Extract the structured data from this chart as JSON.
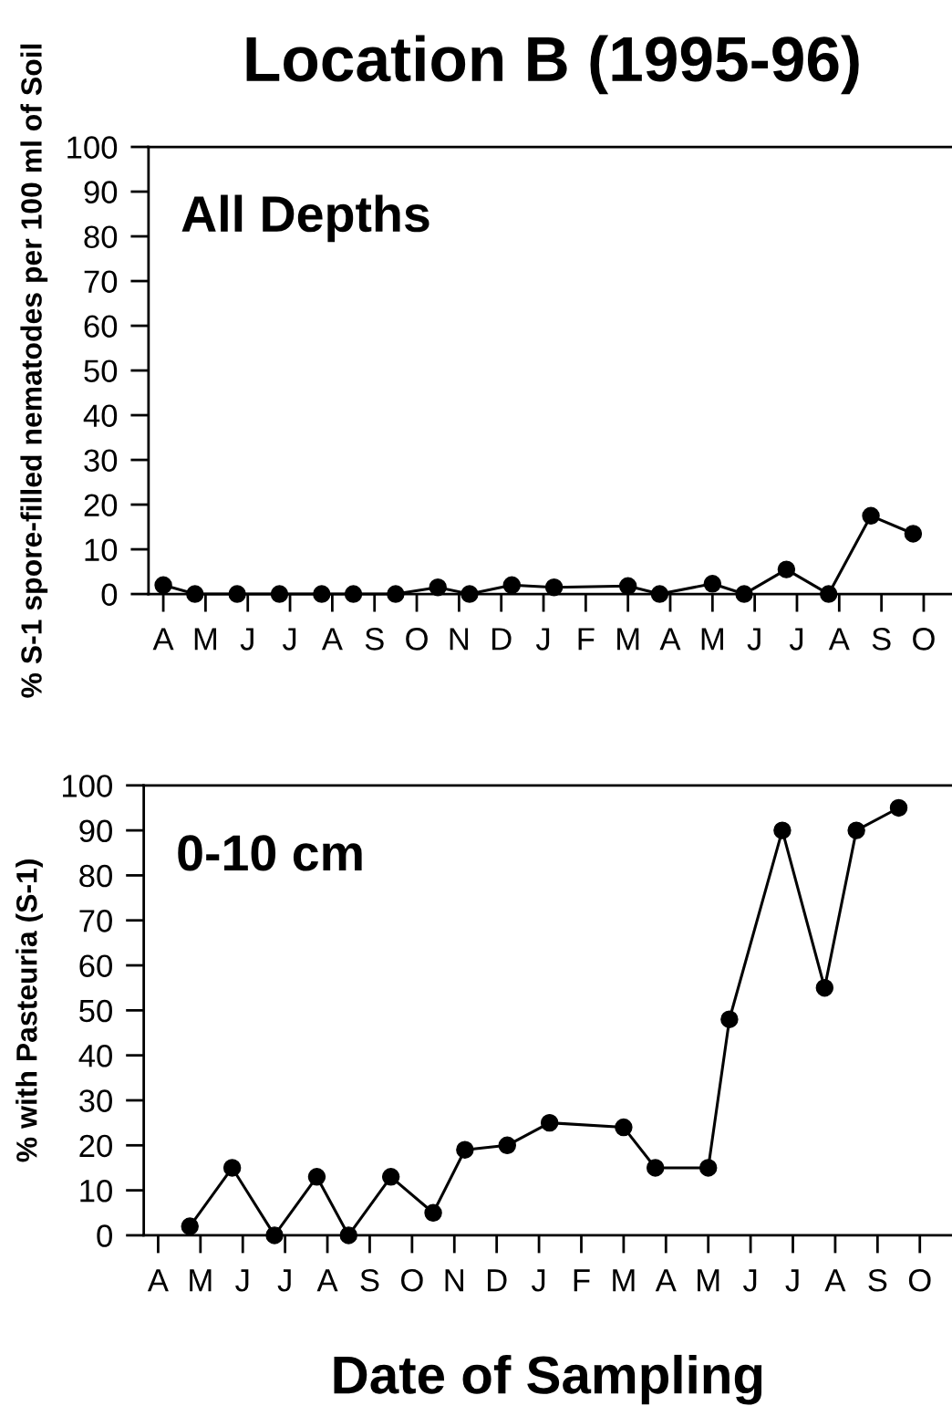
{
  "chart_data": [
    {
      "type": "line",
      "title": "Location B (1995-96)",
      "ylabel": "% S-1 spore-filled nematodes per 100 ml of Soil",
      "annotations": [
        "All Depths"
      ],
      "categories": [
        "A",
        null,
        null,
        null,
        "M",
        null,
        null,
        null,
        "J",
        null,
        null,
        null,
        "J",
        null,
        null,
        null,
        "A",
        null,
        null,
        null,
        "S",
        null,
        null,
        null,
        "O",
        null,
        null,
        null,
        "N",
        null,
        null,
        null,
        "D",
        null,
        null,
        null,
        "J",
        null,
        null,
        null,
        "F",
        null,
        null,
        null,
        "M",
        null,
        null,
        null,
        "A",
        null,
        null,
        null,
        "M",
        null,
        null,
        null,
        "J",
        null,
        null,
        null,
        "J",
        null,
        null,
        null,
        "A",
        null,
        null,
        null,
        "S",
        null,
        null,
        null,
        "O"
      ],
      "series": [
        {
          "color": "#000000",
          "values": [
            2,
            null,
            null,
            0,
            null,
            null,
            null,
            0,
            null,
            null,
            null,
            0,
            null,
            null,
            null,
            0,
            null,
            null,
            0,
            null,
            null,
            null,
            0,
            null,
            null,
            null,
            1.5,
            null,
            null,
            0,
            null,
            null,
            null,
            2,
            null,
            null,
            null,
            1.5,
            null,
            null,
            null,
            null,
            null,
            null,
            1.8,
            null,
            null,
            0,
            null,
            null,
            null,
            null,
            2.3,
            null,
            null,
            0,
            null,
            null,
            null,
            5.5,
            null,
            null,
            null,
            0,
            null,
            null,
            null,
            17.5,
            null,
            null,
            null,
            13.5,
            null
          ]
        }
      ],
      "marker": "circle",
      "line_style": "solid",
      "grid": false,
      "legend": false,
      "ylim": [
        0,
        100
      ],
      "yticks": [
        0,
        10,
        20,
        30,
        40,
        50,
        60,
        70,
        80,
        90,
        100
      ]
    },
    {
      "type": "line",
      "ylabel": "% with Pasteuria (S-1)",
      "xlabel": "Date of Sampling",
      "annotations": [
        "0-10 cm"
      ],
      "categories": [
        "A",
        null,
        null,
        null,
        "M",
        null,
        null,
        null,
        "J",
        null,
        null,
        null,
        "J",
        null,
        null,
        null,
        "A",
        null,
        null,
        null,
        "S",
        null,
        null,
        null,
        "O",
        null,
        null,
        null,
        "N",
        null,
        null,
        null,
        "D",
        null,
        null,
        null,
        "J",
        null,
        null,
        null,
        "F",
        null,
        null,
        null,
        "M",
        null,
        null,
        null,
        "A",
        null,
        null,
        null,
        "M",
        null,
        null,
        null,
        "J",
        null,
        null,
        null,
        "J",
        null,
        null,
        null,
        "A",
        null,
        null,
        null,
        "S",
        null,
        null,
        null,
        "O"
      ],
      "series": [
        {
          "color": "#000000",
          "values": [
            null,
            null,
            null,
            2,
            null,
            null,
            null,
            15,
            null,
            null,
            null,
            0,
            null,
            null,
            null,
            13,
            null,
            null,
            0,
            null,
            null,
            null,
            13,
            null,
            null,
            null,
            5,
            null,
            null,
            19,
            null,
            null,
            null,
            20,
            null,
            null,
            null,
            25,
            null,
            null,
            null,
            null,
            null,
            null,
            24,
            null,
            null,
            15,
            null,
            null,
            null,
            null,
            15,
            null,
            48,
            null,
            null,
            null,
            null,
            90,
            null,
            null,
            null,
            55,
            null,
            null,
            90,
            null,
            null,
            null,
            95,
            null,
            null
          ]
        }
      ],
      "marker": "circle",
      "line_style": "solid",
      "grid": false,
      "legend": false,
      "ylim": [
        0,
        100
      ],
      "yticks": [
        0,
        10,
        20,
        30,
        40,
        50,
        60,
        70,
        80,
        90,
        100
      ]
    }
  ]
}
